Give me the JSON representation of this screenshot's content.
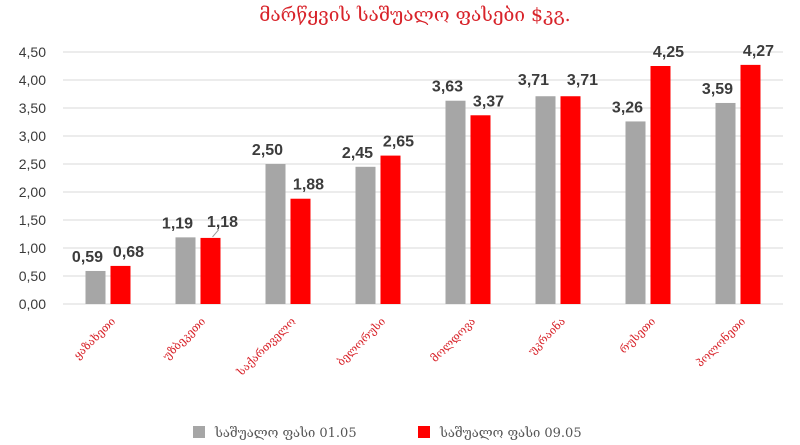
{
  "chart_data": {
    "type": "bar",
    "title": "მარწყვის საშუალო ფასები $კგ.",
    "categories": [
      "ყაზახეთი",
      "უზბეკეთი",
      "საქართველო",
      "ბელორუსი",
      "მოლდოვა",
      "უკრაინა",
      "რუსეთი",
      "პოლონეთი"
    ],
    "series": [
      {
        "name": "საშუალო ფასი 01.05",
        "color": "#a6a6a6",
        "values": [
          0.59,
          1.19,
          2.5,
          2.45,
          3.63,
          3.71,
          3.26,
          3.59
        ],
        "labels": [
          "0,59",
          "1,19",
          "2,50",
          "2,45",
          "3,63",
          "3,71",
          "3,26",
          "3,59"
        ]
      },
      {
        "name": "საშუალო ფასი 09.05",
        "color": "#ff0000",
        "values": [
          0.68,
          1.18,
          1.88,
          2.65,
          3.37,
          3.71,
          4.25,
          4.27
        ],
        "labels": [
          "0,68",
          "1,18",
          "1,88",
          "2,65",
          "3,37",
          "3,71",
          "4,25",
          "4,27"
        ]
      }
    ],
    "ylim": [
      0,
      4.5
    ],
    "yticks": [
      "0,00",
      "0,50",
      "1,00",
      "1,50",
      "2,00",
      "2,50",
      "3,00",
      "3,50",
      "4,00",
      "4,50"
    ],
    "grid": true,
    "legend_position": "bottom",
    "xlabel": "",
    "ylabel": ""
  }
}
